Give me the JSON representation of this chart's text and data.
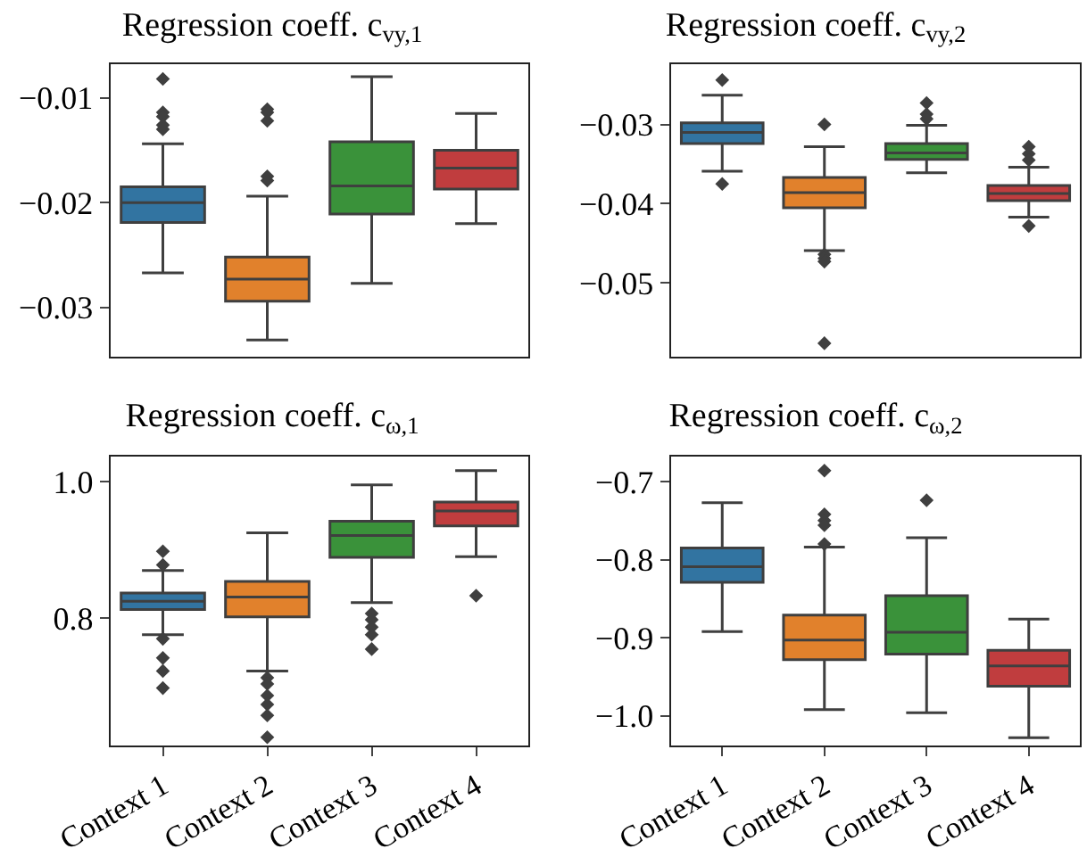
{
  "chart_data": [
    {
      "type": "box",
      "title": "Regression coeff. c$_{vy,1}$",
      "categories": [
        null,
        null,
        null,
        null
      ],
      "colors": [
        "#3274a1",
        "#e1812c",
        "#3a923a",
        "#c03d3e"
      ],
      "tick_labels": "y",
      "ylim": [
        -0.0347,
        -0.0068
      ],
      "yticks": [
        {
          "value": -0.03,
          "label": "−0.03"
        },
        {
          "value": -0.02,
          "label": "−0.02"
        },
        {
          "value": -0.01,
          "label": "−0.01"
        }
      ],
      "boxes": [
        {
          "low": -0.0267,
          "q1": -0.0219,
          "median": -0.02,
          "q3": -0.0185,
          "high": -0.0144,
          "outliers": [
            -0.0082,
            -0.0114,
            -0.0118,
            -0.0126,
            -0.013
          ]
        },
        {
          "low": -0.0331,
          "q1": -0.0294,
          "median": -0.0273,
          "q3": -0.0252,
          "high": -0.0194,
          "outliers": [
            -0.0111,
            -0.0114,
            -0.0122,
            -0.0175,
            -0.0179
          ]
        },
        {
          "low": -0.0277,
          "q1": -0.0211,
          "median": -0.0184,
          "q3": -0.0142,
          "high": -0.008
        },
        {
          "low": -0.022,
          "q1": -0.0187,
          "median": -0.0167,
          "q3": -0.015,
          "high": -0.0115
        }
      ]
    },
    {
      "type": "box",
      "title": "Regression coeff. c$_{vy,2}$",
      "categories": [
        null,
        null,
        null,
        null
      ],
      "colors": [
        "#3274a1",
        "#e1812c",
        "#3a923a",
        "#c03d3e"
      ],
      "tick_labels": "y",
      "ylim": [
        -0.0593,
        -0.0224
      ],
      "yticks": [
        {
          "value": -0.05,
          "label": "−0.05"
        },
        {
          "value": -0.04,
          "label": "−0.04"
        },
        {
          "value": -0.03,
          "label": "−0.03"
        }
      ],
      "boxes": [
        {
          "low": -0.0359,
          "q1": -0.0324,
          "median": -0.031,
          "q3": -0.0298,
          "high": -0.0263,
          "outliers": [
            -0.0244,
            -0.0375
          ]
        },
        {
          "low": -0.0459,
          "q1": -0.0405,
          "median": -0.0386,
          "q3": -0.0367,
          "high": -0.0328,
          "outliers": [
            -0.03,
            -0.0464,
            -0.0469,
            -0.0473,
            -0.0576
          ]
        },
        {
          "low": -0.0361,
          "q1": -0.0344,
          "median": -0.0336,
          "q3": -0.0324,
          "high": -0.0301,
          "outliers": [
            -0.0273,
            -0.0287,
            -0.0293
          ]
        },
        {
          "low": -0.0417,
          "q1": -0.0396,
          "median": -0.0387,
          "q3": -0.0377,
          "high": -0.0354,
          "outliers": [
            -0.0328,
            -0.0337,
            -0.0345,
            -0.0428
          ]
        }
      ]
    },
    {
      "type": "box",
      "title": "Regression coeff. c$_{ω,1}$",
      "categories": [
        "Context 1",
        "Context 2",
        "Context 3",
        "Context 4"
      ],
      "colors": [
        "#3274a1",
        "#e1812c",
        "#3a923a",
        "#c03d3e"
      ],
      "ylim": [
        0.614,
        1.0365
      ],
      "yticks": [
        {
          "value": 0.8,
          "label": "0.8"
        },
        {
          "value": 1.0,
          "label": "1.0"
        }
      ],
      "boxes": [
        {
          "low": 0.776,
          "q1": 0.813,
          "median": 0.825,
          "q3": 0.837,
          "high": 0.87,
          "outliers": [
            0.898,
            0.878,
            0.77,
            0.742,
            0.723,
            0.698
          ]
        },
        {
          "low": 0.723,
          "q1": 0.802,
          "median": 0.831,
          "q3": 0.854,
          "high": 0.925,
          "outliers": [
            0.713,
            0.704,
            0.687,
            0.674,
            0.658,
            0.626
          ]
        },
        {
          "low": 0.823,
          "q1": 0.889,
          "median": 0.921,
          "q3": 0.942,
          "high": 0.995,
          "outliers": [
            0.807,
            0.798,
            0.787,
            0.776,
            0.755
          ]
        },
        {
          "low": 0.89,
          "q1": 0.935,
          "median": 0.957,
          "q3": 0.97,
          "high": 1.016,
          "outliers": [
            0.833
          ]
        }
      ]
    },
    {
      "type": "box",
      "title": "Regression coeff. c$_{ω,2}$",
      "categories": [
        "Context 1",
        "Context 2",
        "Context 3",
        "Context 4"
      ],
      "colors": [
        "#3274a1",
        "#e1812c",
        "#3a923a",
        "#c03d3e"
      ],
      "ylim": [
        -1.038,
        -0.668
      ],
      "yticks": [
        {
          "value": -1.0,
          "label": "−1.0"
        },
        {
          "value": -0.9,
          "label": "−0.9"
        },
        {
          "value": -0.8,
          "label": "−0.8"
        },
        {
          "value": -0.7,
          "label": "−0.7"
        }
      ],
      "boxes": [
        {
          "low": -0.892,
          "q1": -0.829,
          "median": -0.809,
          "q3": -0.785,
          "high": -0.727
        },
        {
          "low": -0.992,
          "q1": -0.928,
          "median": -0.903,
          "q3": -0.871,
          "high": -0.784,
          "outliers": [
            -0.686,
            -0.742,
            -0.75,
            -0.756,
            -0.78
          ]
        },
        {
          "low": -0.996,
          "q1": -0.921,
          "median": -0.893,
          "q3": -0.846,
          "high": -0.772,
          "outliers": [
            -0.724
          ]
        },
        {
          "low": -1.028,
          "q1": -0.962,
          "median": -0.936,
          "q3": -0.916,
          "high": -0.876
        }
      ]
    }
  ]
}
